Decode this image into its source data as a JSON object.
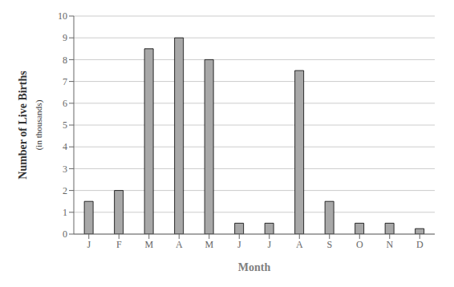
{
  "chart_data": {
    "type": "bar",
    "categories": [
      "J",
      "F",
      "M",
      "A",
      "M",
      "J",
      "J",
      "A",
      "S",
      "O",
      "N",
      "D"
    ],
    "values": [
      1.5,
      2.0,
      8.5,
      9.0,
      8.0,
      0.5,
      0.5,
      7.5,
      1.5,
      0.5,
      0.5,
      0.25
    ],
    "color": "#a8a8a8",
    "xlabel": "Month",
    "ylabel": "Number of Live Births",
    "ylabel_sub": "(in thousands)",
    "ylim": [
      0,
      10
    ],
    "yticks": [
      0,
      1,
      2,
      3,
      4,
      5,
      6,
      7,
      8,
      9,
      10
    ],
    "grid": true
  }
}
